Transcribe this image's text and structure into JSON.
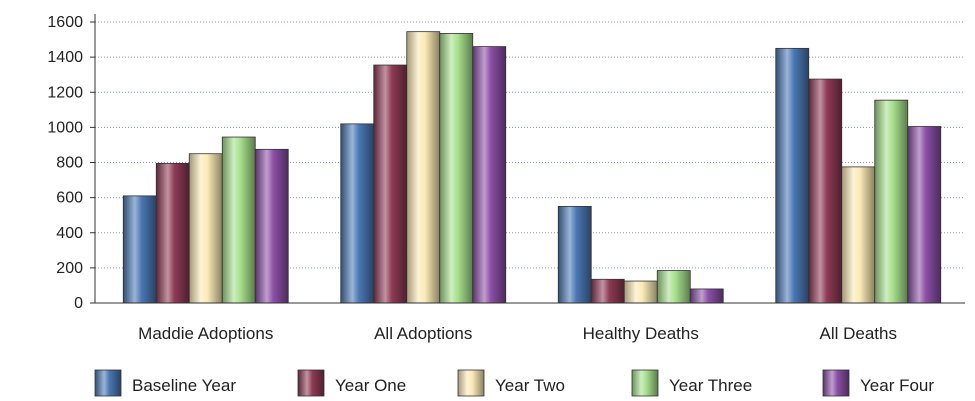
{
  "chart_data": {
    "type": "bar",
    "categories": [
      "Maddie Adoptions",
      "All Adoptions",
      "Healthy Deaths",
      "All Deaths"
    ],
    "series": [
      {
        "name": "Baseline Year",
        "color": "#4a78b4",
        "values": [
          610,
          1020,
          550,
          1450
        ]
      },
      {
        "name": "Year One",
        "color": "#8e3a55",
        "values": [
          795,
          1355,
          135,
          1275
        ]
      },
      {
        "name": "Year Two",
        "color": "#fbeab5",
        "values": [
          850,
          1545,
          125,
          775
        ]
      },
      {
        "name": "Year Three",
        "color": "#a6e08c",
        "values": [
          945,
          1535,
          185,
          1155
        ]
      },
      {
        "name": "Year Four",
        "color": "#8b4fa6",
        "values": [
          875,
          1460,
          80,
          1005
        ]
      }
    ],
    "yticks": [
      "0",
      "200",
      "400",
      "600",
      "800",
      "1000",
      "1200",
      "1400",
      "1600"
    ],
    "ylim": [
      0,
      1600
    ],
    "grid": true,
    "legend_position": "bottom",
    "title": "",
    "xlabel": "",
    "ylabel": ""
  }
}
